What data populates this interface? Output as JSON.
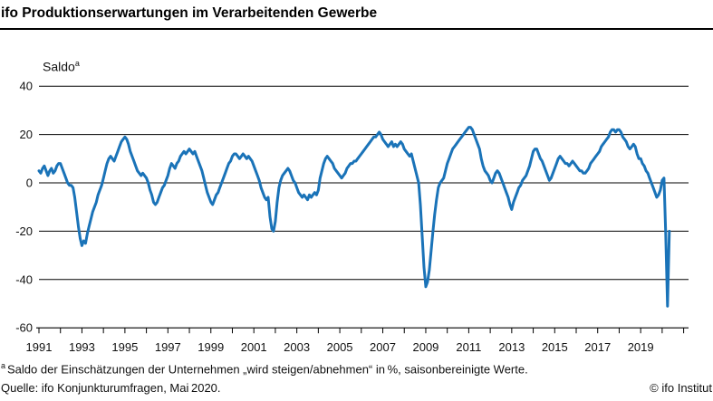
{
  "header": {
    "title": "ifo Produktionserwartungen im Verarbeitenden Gewerbe"
  },
  "chart": {
    "saldo_label": "Saldo",
    "saldo_sup": "a"
  },
  "footer": {
    "footnote_sup": "a",
    "footnote_text": "Saldo der Einschätzungen der Unternehmen „wird steigen/abnehmen“ in %, saisonbereinigte Werte.",
    "source": "Quelle: ifo Konjunkturumfragen, Mai 2020.",
    "copyright": "© ifo Institut"
  },
  "chart_data": {
    "type": "line",
    "title": "ifo Produktionserwartungen im Verarbeitenden Gewerbe",
    "ylabel": "Saldo (a)",
    "ylim": [
      -60,
      40
    ],
    "yticks": [
      40,
      20,
      0,
      -20,
      -40,
      -60
    ],
    "grid": "horizontal",
    "legend": "none",
    "frequency": "monthly",
    "x_start": "1991-01",
    "x_end": "2020-05",
    "xtick_labels": [
      "1991",
      "1993",
      "1995",
      "1997",
      "1999",
      "2001",
      "2003",
      "2005",
      "2007",
      "2009",
      "2011",
      "2013",
      "2015",
      "2017",
      "2019"
    ],
    "line_color": "#1a73b8",
    "series": [
      {
        "name": "Produktionserwartungen Verarbeitendes Gewerbe (Saldo, saisonbereinigt)",
        "values": [
          5,
          4,
          6,
          7,
          5,
          3,
          5,
          6,
          4,
          5,
          7,
          8,
          8,
          6,
          4,
          2,
          0,
          -1,
          -1,
          -2,
          -6,
          -12,
          -18,
          -23,
          -26,
          -24,
          -25,
          -21,
          -18,
          -15,
          -12,
          -10,
          -8,
          -5,
          -3,
          -1,
          2,
          5,
          8,
          10,
          11,
          10,
          9,
          11,
          13,
          15,
          17,
          18,
          19,
          18,
          16,
          13,
          11,
          9,
          7,
          5,
          4,
          3,
          4,
          3,
          2,
          0,
          -3,
          -5,
          -8,
          -9,
          -8,
          -6,
          -4,
          -2,
          -1,
          1,
          3,
          6,
          8,
          7,
          6,
          8,
          9,
          11,
          12,
          13,
          12,
          13,
          14,
          13,
          12,
          13,
          11,
          9,
          7,
          5,
          2,
          -1,
          -4,
          -6,
          -8,
          -9,
          -7,
          -5,
          -4,
          -2,
          0,
          2,
          4,
          6,
          8,
          9,
          11,
          12,
          12,
          11,
          10,
          11,
          12,
          11,
          10,
          11,
          10,
          9,
          7,
          5,
          3,
          1,
          -2,
          -4,
          -6,
          -7,
          -6,
          -14,
          -19,
          -20,
          -16,
          -8,
          -2,
          1,
          3,
          4,
          5,
          6,
          5,
          3,
          1,
          0,
          -2,
          -4,
          -5,
          -6,
          -5,
          -6,
          -7,
          -5,
          -6,
          -5,
          -4,
          -5,
          -3,
          2,
          5,
          8,
          10,
          11,
          10,
          9,
          8,
          6,
          5,
          4,
          3,
          2,
          3,
          4,
          6,
          7,
          8,
          8,
          9,
          9,
          10,
          11,
          12,
          13,
          14,
          15,
          16,
          17,
          18,
          19,
          19,
          20,
          21,
          20,
          18,
          17,
          16,
          15,
          16,
          17,
          15,
          16,
          15,
          16,
          17,
          16,
          14,
          13,
          12,
          11,
          12,
          9,
          6,
          3,
          0,
          -9,
          -22,
          -35,
          -43,
          -41,
          -36,
          -28,
          -20,
          -13,
          -7,
          -2,
          0,
          1,
          2,
          5,
          8,
          10,
          12,
          14,
          15,
          16,
          17,
          18,
          19,
          20,
          21,
          22,
          23,
          23,
          22,
          20,
          18,
          16,
          14,
          10,
          7,
          5,
          4,
          3,
          1,
          0,
          2,
          4,
          5,
          4,
          2,
          0,
          -2,
          -4,
          -6,
          -9,
          -11,
          -8,
          -6,
          -4,
          -2,
          -1,
          1,
          2,
          3,
          5,
          7,
          10,
          13,
          14,
          14,
          12,
          10,
          9,
          7,
          5,
          3,
          1,
          2,
          4,
          6,
          8,
          10,
          11,
          10,
          9,
          8,
          8,
          7,
          8,
          9,
          8,
          7,
          6,
          5,
          5,
          4,
          4,
          5,
          6,
          8,
          9,
          10,
          11,
          12,
          13,
          15,
          16,
          17,
          18,
          19,
          21,
          22,
          22,
          21,
          22,
          22,
          21,
          19,
          18,
          17,
          15,
          14,
          15,
          16,
          15,
          12,
          10,
          10,
          8,
          7,
          5,
          4,
          2,
          0,
          -2,
          -4,
          -6,
          -5,
          -3,
          1,
          2,
          -21,
          -51,
          -20
        ]
      }
    ]
  }
}
